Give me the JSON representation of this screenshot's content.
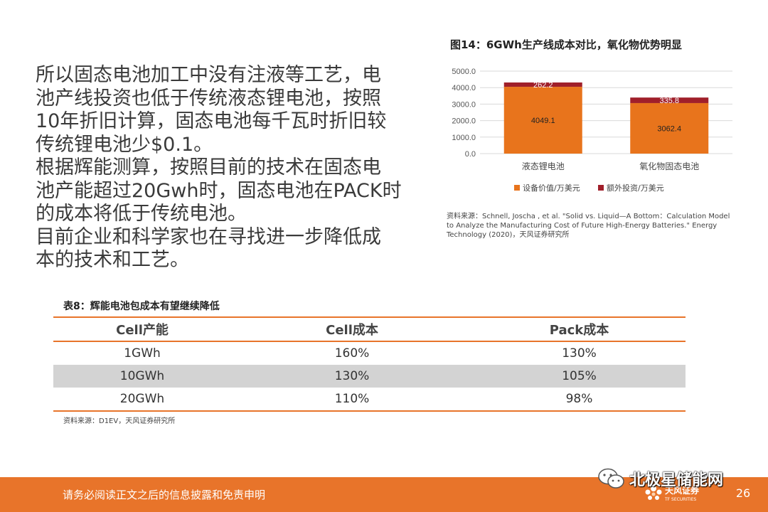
{
  "paragraph": {
    "lines": [
      "所以固态电池加工中没有注液等工艺，电",
      "池产线投资也低于传统液态锂电池，按照",
      "10年折旧计算，固态电池每千瓦时折旧较",
      "传统锂电池少$0.1。",
      "根据辉能测算，按照目前的技术在固态电",
      "池产能超过20Gwh时，固态电池在PACK时",
      "的成本将低于传统电池。",
      "目前企业和科学家也在寻找进一步降低成",
      "本的技术和工艺。"
    ]
  },
  "figure": {
    "title": "图14：6GWh生产线成本对比，氧化物优势明显",
    "source_lines": [
      "资料来源：Schnell, Joscha , et al. \"Solid vs. Liquid—A Bottom：Calculation Model",
      "to Analyze the Manufacturing Cost of Future High-Energy Batteries.\" Energy",
      "Technology (2020)，天风证券研究所"
    ]
  },
  "chart_data": {
    "type": "bar",
    "stacked": true,
    "categories": [
      "液态锂电池",
      "氧化物固态电池"
    ],
    "series": [
      {
        "name": "设备价值/万美元",
        "values": [
          4049.1,
          3062.4
        ],
        "color": "#e8741c"
      },
      {
        "name": "额外投资/万美元",
        "values": [
          262.2,
          335.8
        ],
        "color": "#a01f2a"
      }
    ],
    "ylim": [
      0,
      5000
    ],
    "yticks": [
      "0.0",
      "1000.0",
      "2000.0",
      "3000.0",
      "4000.0",
      "5000.0"
    ],
    "grid": true,
    "legend": "bottom"
  },
  "table": {
    "title": "表8：辉能电池包成本有望继续降低",
    "headers": [
      "Cell产能",
      "Cell成本",
      "Pack成本"
    ],
    "rows": [
      [
        "1GWh",
        "160%",
        "130%"
      ],
      [
        "10GWh",
        "130%",
        "105%"
      ],
      [
        "20GWh",
        "110%",
        "98%"
      ]
    ],
    "source": "资料来源：D1EV，天风证券研究所"
  },
  "footer": {
    "disclaimer": "请务必阅读正文之后的信息披露和免责申明",
    "logo_name": "天风证券",
    "logo_sub": "TF SECURITIES",
    "page_number": "26",
    "bg_color": "#e8742a"
  },
  "watermark": {
    "text": "北极星储能网",
    "icon": "wechat-icon"
  }
}
